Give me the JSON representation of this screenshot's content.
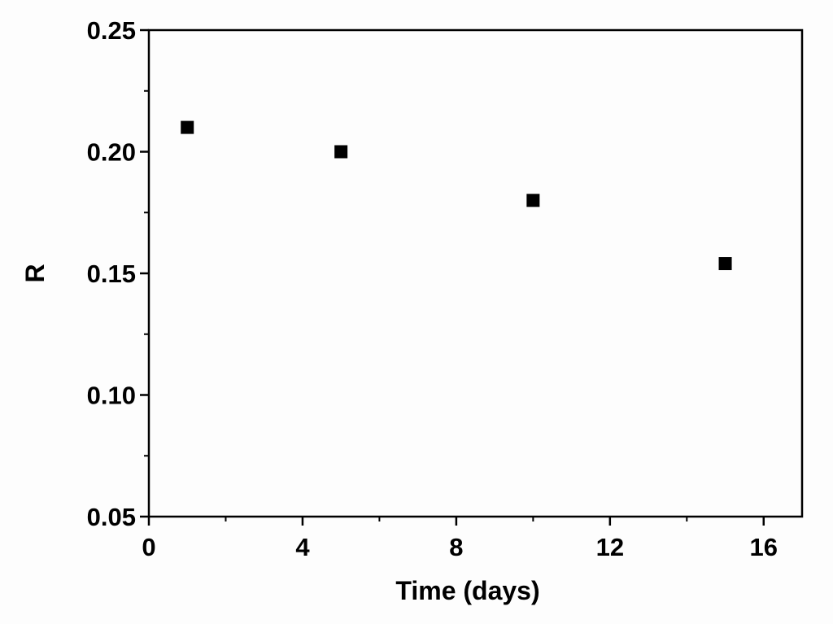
{
  "chart_data": {
    "type": "scatter",
    "title": "",
    "xlabel": "Time (days)",
    "ylabel": "R",
    "xlim": [
      0,
      17
    ],
    "ylim": [
      0.05,
      0.25
    ],
    "xticks": [
      0,
      4,
      8,
      12,
      16
    ],
    "xtick_labels": [
      "0",
      "4",
      "8",
      "12",
      "16"
    ],
    "yticks": [
      0.05,
      0.1,
      0.15,
      0.2,
      0.25
    ],
    "ytick_labels": [
      "0.05",
      "0.10",
      "0.15",
      "0.20",
      "0.25"
    ],
    "grid": false,
    "legend": "none",
    "marker": "square",
    "marker_color": "#000000",
    "series": [
      {
        "x": [
          1,
          5,
          10,
          15
        ],
        "y": [
          0.21,
          0.2,
          0.18,
          0.154
        ]
      }
    ]
  }
}
